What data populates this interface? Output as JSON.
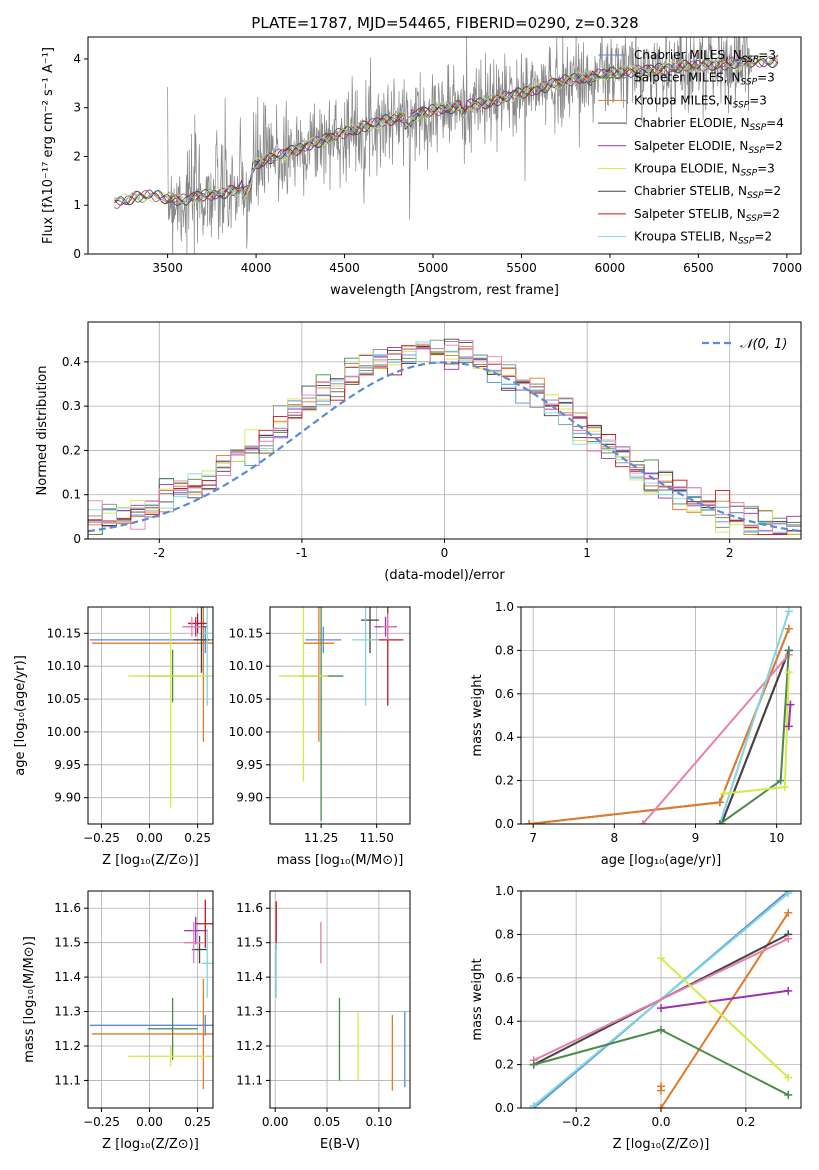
{
  "title": "PLATE=1787, MJD=54465, FIBERID=0290, z=0.328",
  "colors": {
    "chabrier_miles": "#5b8bd6",
    "salpeter_miles": "#4a8a4a",
    "kroupa_miles": "#e07b2a",
    "chabrier_elodie": "#888888",
    "salpeter_elodie": "#9b30b0",
    "kroupa_elodie": "#d6e84a",
    "chabrier_stelib": "#444444",
    "salpeter_stelib": "#c0181a",
    "kroupa_stelib": "#7fd6e0",
    "pink": "#e97fb0",
    "gaussian": "#5b8bd6"
  },
  "chart_data": [
    {
      "id": "spectrum",
      "type": "line",
      "title": "PLATE=1787, MJD=54465, FIBERID=0290, z=0.328",
      "xlabel": "wavelength [Angstrom, rest frame]",
      "ylabel": "Flux [fλ10⁻¹⁷ erg cm⁻² s⁻¹ A⁻¹]",
      "xlim": [
        3050,
        7080
      ],
      "ylim": [
        0,
        4.45
      ],
      "xticks": [
        3500,
        4000,
        4500,
        5000,
        5500,
        6000,
        6500,
        7000
      ],
      "yticks": [
        0,
        1,
        2,
        3,
        4
      ],
      "legend": [
        {
          "label": "Chabrier MILES, N",
          "sub": "SSP",
          "tail": "=3",
          "color": "#5b8bd6"
        },
        {
          "label": "Salpeter MILES, N",
          "sub": "SSP",
          "tail": "=3",
          "color": "#4a8a4a"
        },
        {
          "label": "Kroupa MILES, N",
          "sub": "SSP",
          "tail": "=3",
          "color": "#e07b2a"
        },
        {
          "label": "Chabrier ELODIE, N",
          "sub": "SSP",
          "tail": "=4",
          "color": "#444444"
        },
        {
          "label": "Salpeter ELODIE, N",
          "sub": "SSP",
          "tail": "=2",
          "color": "#9b30b0"
        },
        {
          "label": "Kroupa ELODIE, N",
          "sub": "SSP",
          "tail": "=3",
          "color": "#d6e84a"
        },
        {
          "label": "Chabrier STELIB, N",
          "sub": "SSP",
          "tail": "=2",
          "color": "#444444"
        },
        {
          "label": "Salpeter STELIB, N",
          "sub": "SSP",
          "tail": "=2",
          "color": "#c0181a"
        },
        {
          "label": "Kroupa STELIB, N",
          "sub": "SSP",
          "tail": "=2",
          "color": "#7fd6e0"
        }
      ],
      "model_continuum": {
        "x": [
          3200,
          3300,
          3400,
          3500,
          3600,
          3700,
          3800,
          3900,
          4000,
          4100,
          4200,
          4300,
          4400,
          4500,
          4600,
          4700,
          4800,
          4900,
          5000,
          5100,
          5200,
          5300,
          5400,
          5500,
          5600,
          5700,
          5800,
          5900,
          6000,
          6100,
          6200,
          6300,
          6400,
          6500,
          6600,
          6700,
          6800,
          6900
        ],
        "y": [
          1.05,
          1.15,
          1.2,
          1.15,
          1.1,
          1.2,
          1.25,
          1.3,
          1.85,
          2.0,
          2.1,
          2.25,
          2.35,
          2.5,
          2.6,
          2.7,
          2.8,
          2.85,
          2.95,
          3.0,
          3.05,
          3.1,
          3.2,
          3.3,
          3.4,
          3.5,
          3.6,
          3.65,
          3.7,
          3.75,
          3.75,
          3.8,
          3.85,
          3.85,
          3.9,
          3.9,
          3.95,
          3.95
        ]
      },
      "data_range": [
        3500,
        6800
      ]
    },
    {
      "id": "residuals",
      "type": "line",
      "xlabel": "(data-model)/error",
      "ylabel": "Normed distribution",
      "xlim": [
        -2.5,
        2.5
      ],
      "ylim": [
        0,
        0.49
      ],
      "xticks": [
        -2,
        -1,
        0,
        1,
        2
      ],
      "yticks": [
        0.0,
        0.1,
        0.2,
        0.3,
        0.4
      ],
      "legend": [
        {
          "label": "𝒩(0, 1)",
          "color": "#5b8bd6"
        }
      ],
      "bin_width": 0.1
    },
    {
      "id": "age_vs_Z",
      "type": "scatter",
      "xlabel": "Z [log₁₀(Z/Z⊙)]",
      "ylabel": "age  [log₁₀(age/yr)]",
      "xlim": [
        -0.32,
        0.33
      ],
      "ylim": [
        9.86,
        10.19
      ],
      "xticks": [
        -0.25,
        0.0,
        0.25
      ],
      "xticklabels": [
        "−0.25",
        "0.00",
        "0.25"
      ],
      "yticks": [
        9.9,
        9.95,
        10.0,
        10.05,
        10.1,
        10.15
      ],
      "yticklabels": [
        "9.90",
        "9.95",
        "10.00",
        "10.05",
        "10.10",
        "10.15"
      ],
      "points": [
        {
          "x": 0.29,
          "y": 10.14,
          "xerr": 0.6,
          "yerr": 0.02,
          "color": "#5b8bd6"
        },
        {
          "x": 0.28,
          "y": 10.135,
          "xerr": 0.58,
          "yerr": 0.15,
          "color": "#e07b2a"
        },
        {
          "x": 0.12,
          "y": 10.085,
          "xerr": 0.13,
          "yerr": 0.04,
          "color": "#4a8a4a"
        },
        {
          "x": 0.11,
          "y": 10.085,
          "xerr": 0.22,
          "yerr": 0.2,
          "color": "#d6e84a"
        },
        {
          "x": 0.25,
          "y": 10.165,
          "xerr": 0.05,
          "yerr": 0.015,
          "color": "#c0181a"
        },
        {
          "x": 0.24,
          "y": 10.16,
          "xerr": 0.06,
          "yerr": 0.015,
          "color": "#9b30b0"
        },
        {
          "x": 0.27,
          "y": 10.14,
          "xerr": 0.04,
          "yerr": 0.05,
          "color": "#444444"
        },
        {
          "x": 0.3,
          "y": 10.15,
          "xerr": 0.02,
          "yerr": 0.11,
          "color": "#7fd6e0"
        },
        {
          "x": 0.22,
          "y": 10.16,
          "xerr": 0.05,
          "yerr": 0.015,
          "color": "#e97fb0"
        }
      ]
    },
    {
      "id": "age_vs_mass",
      "type": "scatter",
      "xlabel": "mass [log₁₀(M/M⊙)]",
      "ylabel": "",
      "xlim": [
        11.02,
        11.65
      ],
      "ylim": [
        9.86,
        10.19
      ],
      "xticks": [
        11.25,
        11.5
      ],
      "xticklabels": [
        "11.25",
        "11.50"
      ],
      "yticks": [
        9.9,
        9.95,
        10.0,
        10.05,
        10.1,
        10.15
      ],
      "yticklabels": [
        "9.90",
        "9.95",
        "10.00",
        "10.05",
        "10.10",
        "10.15"
      ],
      "points": [
        {
          "x": 11.26,
          "y": 10.14,
          "xerr": 0.08,
          "yerr": 0.02,
          "color": "#5b8bd6"
        },
        {
          "x": 11.24,
          "y": 10.135,
          "xerr": 0.07,
          "yerr": 0.15,
          "color": "#e07b2a"
        },
        {
          "x": 11.25,
          "y": 10.085,
          "xerr": 0.1,
          "yerr": 0.22,
          "color": "#4a8a4a"
        },
        {
          "x": 11.17,
          "y": 10.085,
          "xerr": 0.11,
          "yerr": 0.16,
          "color": "#d6e84a"
        },
        {
          "x": 11.55,
          "y": 10.14,
          "xerr": 0.07,
          "yerr": 0.1,
          "color": "#c0181a"
        },
        {
          "x": 11.54,
          "y": 10.16,
          "xerr": 0.05,
          "yerr": 0.015,
          "color": "#9b30b0"
        },
        {
          "x": 11.47,
          "y": 10.17,
          "xerr": 0.04,
          "yerr": 0.05,
          "color": "#444444"
        },
        {
          "x": 11.45,
          "y": 10.14,
          "xerr": 0.06,
          "yerr": 0.1,
          "color": "#7fd6e0"
        },
        {
          "x": 11.55,
          "y": 10.16,
          "xerr": 0.03,
          "yerr": 0.02,
          "color": "#e97fb0"
        }
      ]
    },
    {
      "id": "weight_vs_age",
      "type": "line",
      "xlabel": "age  [log₁₀(age/yr)]",
      "ylabel": "mass weight",
      "xlim": [
        6.85,
        10.3
      ],
      "ylim": [
        0,
        1.0
      ],
      "xticks": [
        7,
        8,
        9,
        10
      ],
      "yticks": [
        0.0,
        0.2,
        0.4,
        0.6,
        0.8,
        1.0
      ],
      "yticklabels": [
        "0.0",
        "0.2",
        "0.4",
        "0.6",
        "0.8",
        "1.0"
      ],
      "series": [
        {
          "color": "#5b8bd6",
          "x": [
            6.95,
            9.3,
            10.15
          ],
          "y": [
            0.0,
            0.1,
            0.9
          ]
        },
        {
          "color": "#e07b2a",
          "x": [
            6.95,
            9.3,
            10.15
          ],
          "y": [
            0.0,
            0.1,
            0.9
          ]
        },
        {
          "color": "#c0181a",
          "x": [
            9.32,
            10.15
          ],
          "y": [
            0.0,
            0.8
          ]
        },
        {
          "color": "#444444",
          "x": [
            9.32,
            10.15
          ],
          "y": [
            0.0,
            0.8
          ]
        },
        {
          "color": "#e97fb0",
          "x": [
            8.35,
            10.15
          ],
          "y": [
            0.0,
            0.78
          ]
        },
        {
          "color": "#7fd6e0",
          "x": [
            9.3,
            10.15
          ],
          "y": [
            0.0,
            0.98
          ]
        },
        {
          "color": "#4a8a4a",
          "x": [
            9.3,
            10.05,
            10.15
          ],
          "y": [
            0.0,
            0.2,
            0.8
          ]
        },
        {
          "color": "#d6e84a",
          "x": [
            9.35,
            10.1,
            10.15
          ],
          "y": [
            0.14,
            0.17,
            0.7
          ]
        },
        {
          "color": "#9b30b0",
          "x": [
            10.15,
            10.17
          ],
          "y": [
            0.45,
            0.55
          ]
        }
      ]
    },
    {
      "id": "mass_vs_Z",
      "type": "scatter",
      "xlabel": "Z [log₁₀(Z/Z⊙)]",
      "ylabel": "mass [log₁₀(M/M⊙)]",
      "xlim": [
        -0.32,
        0.33
      ],
      "ylim": [
        11.02,
        11.65
      ],
      "xticks": [
        -0.25,
        0.0,
        0.25
      ],
      "xticklabels": [
        "−0.25",
        "0.00",
        "0.25"
      ],
      "yticks": [
        11.1,
        11.2,
        11.3,
        11.4,
        11.5,
        11.6
      ],
      "yticklabels": [
        "11.1",
        "11.2",
        "11.3",
        "11.4",
        "11.5",
        "11.6"
      ],
      "points": [
        {
          "x": 0.29,
          "y": 11.26,
          "xerr": 0.6,
          "yerr": 0.03,
          "color": "#5b8bd6"
        },
        {
          "x": 0.28,
          "y": 11.235,
          "xerr": 0.58,
          "yerr": 0.16,
          "color": "#e07b2a"
        },
        {
          "x": 0.12,
          "y": 11.25,
          "xerr": 0.13,
          "yerr": 0.09,
          "color": "#4a8a4a"
        },
        {
          "x": 0.11,
          "y": 11.17,
          "xerr": 0.22,
          "yerr": 0.03,
          "color": "#d6e84a"
        },
        {
          "x": 0.29,
          "y": 11.555,
          "xerr": 0.05,
          "yerr": 0.07,
          "color": "#c0181a"
        },
        {
          "x": 0.24,
          "y": 11.535,
          "xerr": 0.06,
          "yerr": 0.04,
          "color": "#9b30b0"
        },
        {
          "x": 0.26,
          "y": 11.48,
          "xerr": 0.04,
          "yerr": 0.04,
          "color": "#444444"
        },
        {
          "x": 0.3,
          "y": 11.44,
          "xerr": 0.03,
          "yerr": 0.1,
          "color": "#7fd6e0"
        },
        {
          "x": 0.23,
          "y": 11.5,
          "xerr": 0.05,
          "yerr": 0.06,
          "color": "#e97fb0"
        }
      ]
    },
    {
      "id": "mass_vs_ebv",
      "type": "scatter",
      "xlabel": "E(B-V)",
      "ylabel": "",
      "xlim": [
        -0.005,
        0.13
      ],
      "ylim": [
        11.02,
        11.65
      ],
      "xticks": [
        0.0,
        0.05,
        0.1
      ],
      "xticklabels": [
        "0.00",
        "0.05",
        "0.10"
      ],
      "yticks": [
        11.1,
        11.2,
        11.3,
        11.4,
        11.5,
        11.6
      ],
      "yticklabels": [
        "11.1",
        "11.2",
        "11.3",
        "11.4",
        "11.5",
        "11.6"
      ],
      "points": [
        {
          "x": 0.001,
          "y": 11.55,
          "xerr": 0,
          "yerr": 0.07,
          "color": "#c0181a"
        },
        {
          "x": 0.001,
          "y": 11.42,
          "xerr": 0,
          "yerr": 0.08,
          "color": "#7fd6e0"
        },
        {
          "x": 0.044,
          "y": 11.5,
          "xerr": 0,
          "yerr": 0.06,
          "color": "#e97fb0"
        },
        {
          "x": 0.062,
          "y": 11.22,
          "xerr": 0,
          "yerr": 0.12,
          "color": "#4a8a4a"
        },
        {
          "x": 0.08,
          "y": 11.2,
          "xerr": 0,
          "yerr": 0.1,
          "color": "#d6e84a"
        },
        {
          "x": 0.113,
          "y": 11.18,
          "xerr": 0,
          "yerr": 0.11,
          "color": "#e07b2a"
        },
        {
          "x": 0.125,
          "y": 11.19,
          "xerr": 0,
          "yerr": 0.11,
          "color": "#5b8bd6"
        }
      ]
    },
    {
      "id": "weight_vs_Z",
      "type": "line",
      "xlabel": "Z [log₁₀(Z/Z⊙)]",
      "ylabel": "mass weight",
      "xlim": [
        -0.33,
        0.33
      ],
      "ylim": [
        0,
        1.0
      ],
      "xticks": [
        -0.2,
        0.0,
        0.2
      ],
      "xticklabels": [
        "−0.2",
        "0.0",
        "0.2"
      ],
      "yticks": [
        0.0,
        0.2,
        0.4,
        0.6,
        0.8,
        1.0
      ],
      "yticklabels": [
        "0.0",
        "0.2",
        "0.4",
        "0.6",
        "0.8",
        "1.0"
      ],
      "series": [
        {
          "color": "#5b8bd6",
          "x": [
            -0.3,
            0.3
          ],
          "y": [
            0.0,
            1.0
          ]
        },
        {
          "color": "#7fd6e0",
          "x": [
            -0.3,
            0.3
          ],
          "y": [
            0.01,
            0.99
          ]
        },
        {
          "color": "#e07b2a",
          "x": [
            0.0,
            0.3
          ],
          "y": [
            0.0,
            0.9
          ]
        },
        {
          "color": "#e07b2a",
          "x": [
            0.0,
            0.0
          ],
          "y": [
            0.08,
            0.1
          ]
        },
        {
          "color": "#444444",
          "x": [
            -0.3,
            0.3
          ],
          "y": [
            0.2,
            0.8
          ]
        },
        {
          "color": "#e97fb0",
          "x": [
            -0.3,
            0.3
          ],
          "y": [
            0.22,
            0.78
          ]
        },
        {
          "color": "#4a8a4a",
          "x": [
            -0.3,
            0.0,
            0.3
          ],
          "y": [
            0.2,
            0.36,
            0.06
          ]
        },
        {
          "color": "#9b30b0",
          "x": [
            0.0,
            0.3
          ],
          "y": [
            0.46,
            0.54
          ]
        },
        {
          "color": "#d6e84a",
          "x": [
            0.0,
            0.3
          ],
          "y": [
            0.69,
            0.14
          ]
        }
      ]
    }
  ]
}
